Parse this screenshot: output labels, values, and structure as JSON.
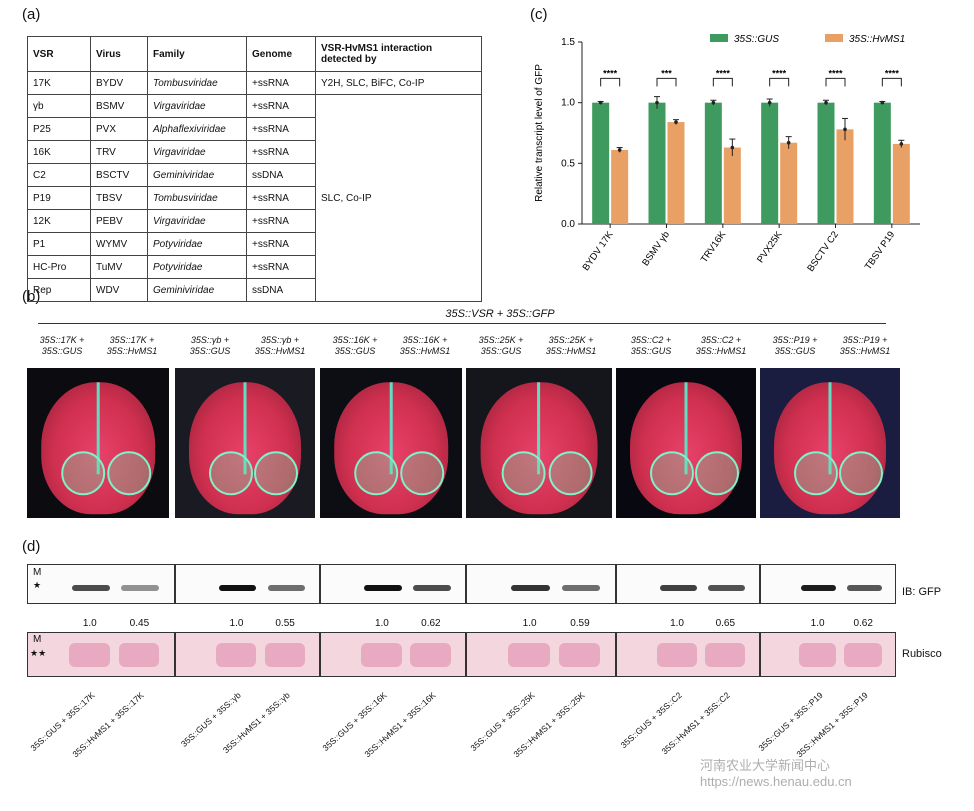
{
  "panels": {
    "a": "(a)",
    "b": "(b)",
    "c": "(c)",
    "d": "(d)"
  },
  "table": {
    "headers": [
      "VSR",
      "Virus",
      "Family",
      "Genome",
      "VSR-HvMS1 interaction detected by"
    ],
    "rows": [
      {
        "vsr": "17K",
        "virus": "BYDV",
        "family": "Tombusviridae",
        "genome": "+ssRNA"
      },
      {
        "vsr": "γb",
        "virus": "BSMV",
        "family": "Virgaviridae",
        "genome": "+ssRNA"
      },
      {
        "vsr": "P25",
        "virus": "PVX",
        "family": "Alphaflexiviridae",
        "genome": "+ssRNA"
      },
      {
        "vsr": "16K",
        "virus": "TRV",
        "family": "Virgaviridae",
        "genome": "+ssRNA"
      },
      {
        "vsr": "C2",
        "virus": "BSCTV",
        "family": "Geminiviridae",
        "genome": "ssDNA"
      },
      {
        "vsr": "P19",
        "virus": "TBSV",
        "family": "Tombusviridae",
        "genome": "+ssRNA"
      },
      {
        "vsr": "12K",
        "virus": "PEBV",
        "family": "Virgaviridae",
        "genome": "+ssRNA"
      },
      {
        "vsr": "P1",
        "virus": "WYMV",
        "family": "Potyviridae",
        "genome": "+ssRNA"
      },
      {
        "vsr": "HC-Pro",
        "virus": "TuMV",
        "family": "Potyviridae",
        "genome": "+ssRNA"
      },
      {
        "vsr": "Rep",
        "virus": "WDV",
        "family": "Geminiviridae",
        "genome": "ssDNA"
      }
    ],
    "detect_first": "Y2H, SLC, BiFC, Co-IP",
    "detect_rest": "SLC, Co-IP"
  },
  "chart_data": {
    "type": "bar",
    "ylabel": "Relative transcript level of GFP",
    "ylim": [
      0,
      1.5
    ],
    "yticks": [
      "0.0",
      "0.5",
      "1.0",
      "1.5"
    ],
    "categories": [
      "BYDV 17K",
      "BSMV γb",
      "TRV16K",
      "PVX25K",
      "BSCTV C2",
      "TBSV P19"
    ],
    "series": [
      {
        "name": "35S::GUS",
        "color": "#3e9a5e",
        "values": [
          1.0,
          1.0,
          1.0,
          1.0,
          1.0,
          1.0
        ],
        "err": [
          0.01,
          0.05,
          0.02,
          0.03,
          0.02,
          0.01
        ]
      },
      {
        "name": "35S::HvMS1",
        "color": "#e8a064",
        "values": [
          0.61,
          0.84,
          0.63,
          0.67,
          0.78,
          0.66
        ],
        "err": [
          0.02,
          0.02,
          0.07,
          0.05,
          0.09,
          0.03
        ]
      }
    ],
    "significance": [
      "****",
      "***",
      "****",
      "****",
      "****",
      "****"
    ]
  },
  "leaves": {
    "title": "35S::VSR + 35S::GFP",
    "captions": [
      "35S::17K + 35S::GUS",
      "35S::17K + 35S::HvMS1",
      "35S::γb + 35S::GUS",
      "35S::γb + 35S::HvMS1",
      "35S::16K + 35S::GUS",
      "35S::16K + 35S::HvMS1",
      "35S::25K + 35S::GUS",
      "35S::25K + 35S::HvMS1",
      "35S::C2 + 35S::GUS",
      "35S::C2 + 35S::HvMS1",
      "35S::P19 + 35S::GUS",
      "35S::P19 + 35S::HvMS1"
    ]
  },
  "blots": {
    "marker": "M",
    "star1": "★",
    "star2": "★★",
    "ib_label": "IB: GFP",
    "rubisco_label": "Rubisco",
    "ratios": [
      "1.0",
      "0.45",
      "1.0",
      "0.55",
      "1.0",
      "0.62",
      "1.0",
      "0.59",
      "1.0",
      "0.65",
      "1.0",
      "0.62"
    ],
    "lanes": [
      "35S::GUS + 35S::17K",
      "35S::HvMS1 + 35S::17K",
      "35S::GUS + 35S::γb",
      "35S::HvMS1 + 35S::γb",
      "35S::GUS + 35S::16K",
      "35S::HvMS1 + 35S::16K",
      "35S::GUS + 35S::25K",
      "35S::HvMS1 + 35S::25K",
      "35S::GUS + 35S::C2",
      "35S::HvMS1 + 35S::C2",
      "35S::GUS + 35S::P19",
      "35S::HvMS1 + 35S::P19"
    ]
  },
  "watermark": "河南农业大学新闻中心 https://news.henau.edu.cn"
}
